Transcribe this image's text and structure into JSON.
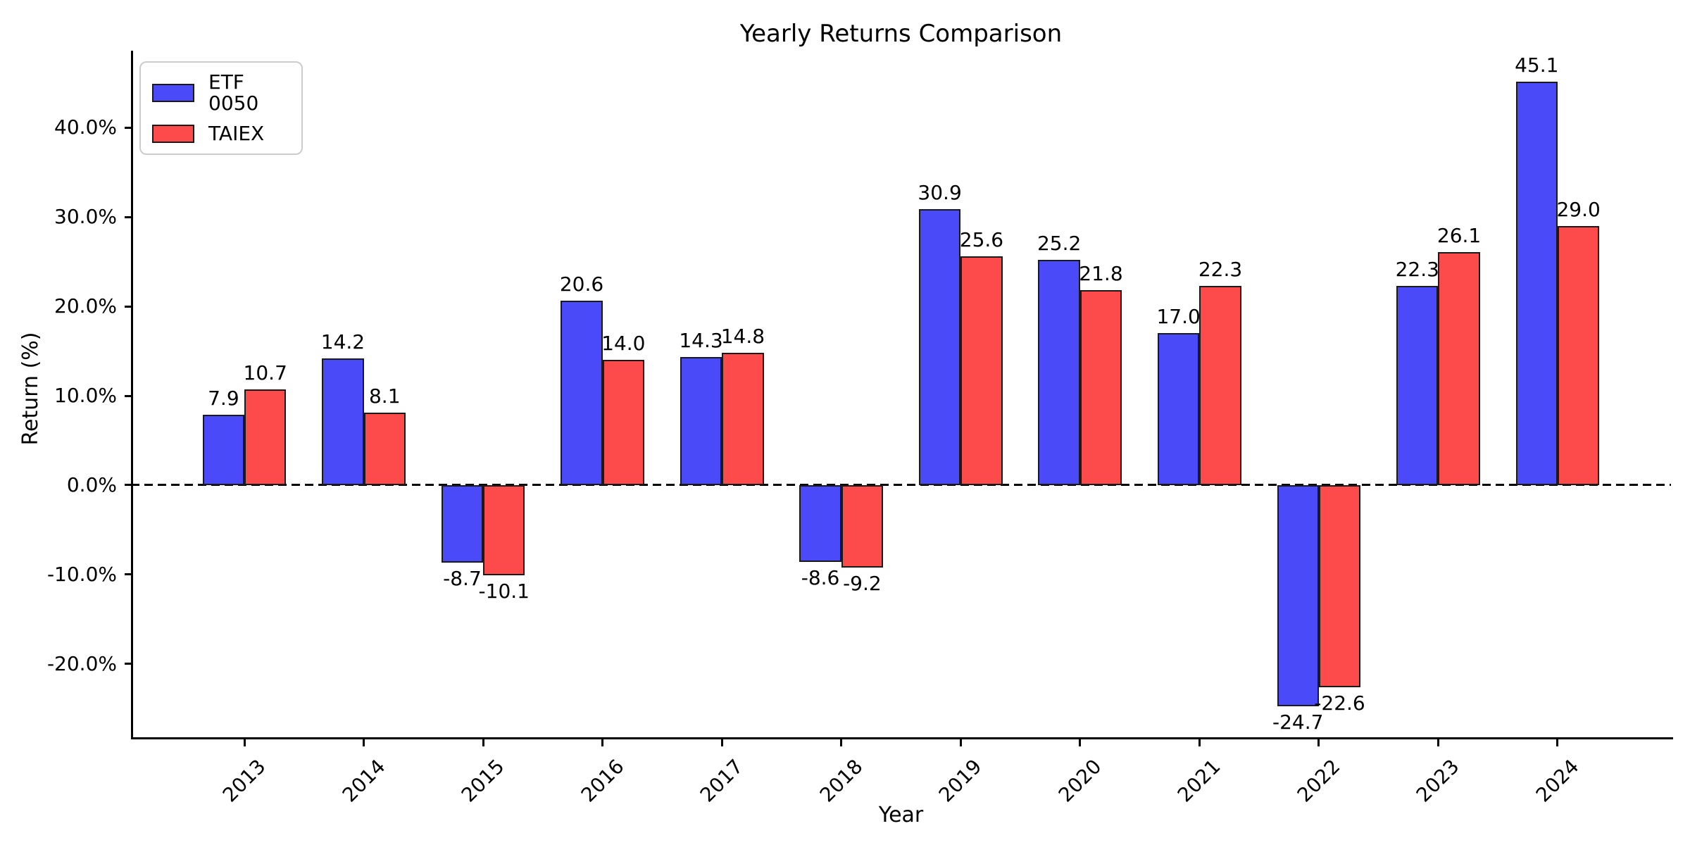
{
  "chart_data": {
    "type": "bar",
    "title": "Yearly Returns Comparison",
    "xlabel": "Year",
    "ylabel": "Return (%)",
    "categories": [
      "2013",
      "2014",
      "2015",
      "2016",
      "2017",
      "2018",
      "2019",
      "2020",
      "2021",
      "2022",
      "2023",
      "2024"
    ],
    "series": [
      {
        "name": "ETF 0050",
        "color": "#4A4AF8",
        "values": [
          7.9,
          14.2,
          -8.7,
          20.6,
          14.3,
          -8.6,
          30.9,
          25.2,
          17.0,
          -24.7,
          22.3,
          45.1
        ]
      },
      {
        "name": "TAIEX",
        "color": "#FD4B4C",
        "values": [
          10.7,
          8.1,
          -10.1,
          14.0,
          14.8,
          -9.2,
          25.6,
          21.8,
          22.3,
          -22.6,
          26.1,
          29.0
        ]
      }
    ],
    "bar_edge_color": "#1a1a1a",
    "yticks": [
      "40.0%",
      "30.0%",
      "20.0%",
      "10.0%",
      "0.0%",
      "-10.0%",
      "-20.0%"
    ],
    "ylim": [
      -28.2,
      48.6
    ],
    "zero_line": "dashed",
    "legend_position": "upper left",
    "grid": false,
    "value_label_decimals": 1
  }
}
